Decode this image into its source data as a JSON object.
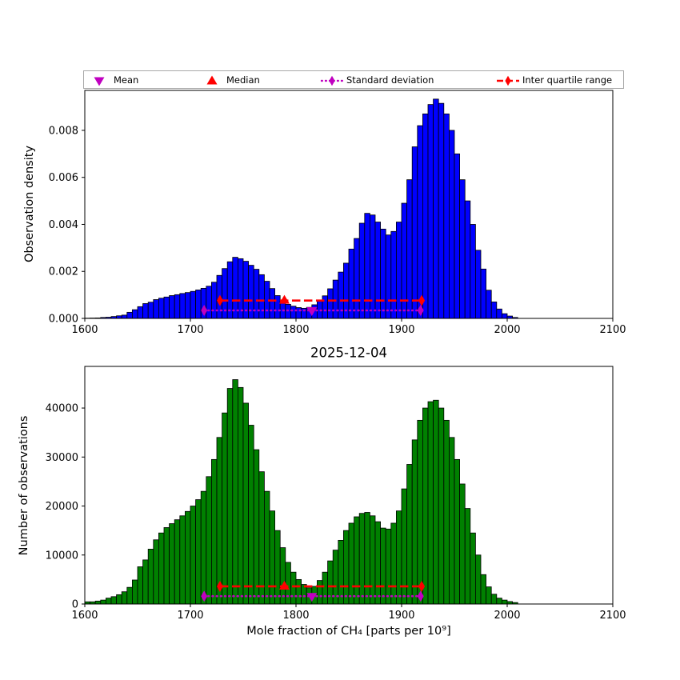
{
  "figure": {
    "title": "2025-12-04",
    "background": "#ffffff"
  },
  "colors": {
    "bar_top": "#0000FF",
    "bar_bottom": "#008000",
    "bar_edge": "#000000",
    "mean_std": "#C000C0",
    "median_iqr": "#FF0000",
    "axis": "#000000"
  },
  "legend": {
    "items": [
      {
        "label": "Mean",
        "marker": "triangle-down",
        "color": "#C000C0"
      },
      {
        "label": "Median",
        "marker": "triangle-up",
        "color": "#FF0000"
      },
      {
        "label": "Standard deviation",
        "marker": "diamond-dotted",
        "color": "#C000C0"
      },
      {
        "label": "Inter quartile range",
        "marker": "diamond-dashed",
        "color": "#FF0000"
      }
    ]
  },
  "chart_data": [
    {
      "type": "bar",
      "ylabel": "Observation density",
      "xlabel": "",
      "x_start": 1600,
      "bin_width": 5,
      "xlim": [
        1600,
        2100
      ],
      "ylim": [
        0,
        0.0097
      ],
      "x_ticks": [
        1600,
        1700,
        1800,
        1900,
        2000,
        2100
      ],
      "y_ticks": [
        0.0,
        0.002,
        0.004,
        0.006,
        0.008
      ],
      "y_tick_labels": [
        "0.000",
        "0.002",
        "0.004",
        "0.006",
        "0.008"
      ],
      "bar_color": "#0000FF",
      "values": [
        1e-05,
        1.5e-05,
        2e-05,
        4e-05,
        5e-05,
        8e-05,
        0.00011,
        0.00014,
        0.00026,
        0.00037,
        0.0005,
        0.00063,
        0.00069,
        0.0008,
        0.00086,
        0.00091,
        0.00097,
        0.00101,
        0.00106,
        0.0011,
        0.00115,
        0.00121,
        0.00128,
        0.00137,
        0.00154,
        0.00183,
        0.00212,
        0.00241,
        0.0026,
        0.00254,
        0.00243,
        0.00226,
        0.00209,
        0.00186,
        0.00158,
        0.00127,
        0.00097,
        0.00074,
        0.0006,
        0.00052,
        0.00046,
        0.00043,
        0.00047,
        0.00058,
        0.00076,
        0.00096,
        0.00126,
        0.00163,
        0.00197,
        0.00235,
        0.00295,
        0.0034,
        0.00405,
        0.00447,
        0.0044,
        0.0041,
        0.0038,
        0.00355,
        0.0037,
        0.0041,
        0.0049,
        0.0059,
        0.0073,
        0.0082,
        0.0087,
        0.0091,
        0.00933,
        0.00915,
        0.0087,
        0.008,
        0.007,
        0.0059,
        0.005,
        0.004,
        0.0029,
        0.0021,
        0.0012,
        0.0007,
        0.0004,
        0.0002,
        0.0001,
        4e-05
      ],
      "markers": {
        "mean": {
          "x": 1815,
          "y": 0.00034
        },
        "median": {
          "x": 1789,
          "y": 0.00076
        },
        "std_range": {
          "x1": 1713,
          "x2": 1918,
          "y": 0.00034
        },
        "iqr_range": {
          "x1": 1728,
          "x2": 1919,
          "y": 0.00076
        }
      }
    },
    {
      "type": "bar",
      "ylabel": "Number of observations",
      "xlabel": "Mole fraction of CH₄ [parts per 10⁹]",
      "x_start": 1600,
      "bin_width": 5,
      "xlim": [
        1600,
        2100
      ],
      "ylim": [
        0,
        48500
      ],
      "x_ticks": [
        1600,
        1700,
        1800,
        1900,
        2000,
        2100
      ],
      "y_ticks": [
        0,
        10000,
        20000,
        30000,
        40000
      ],
      "y_tick_labels": [
        "0",
        "10000",
        "20000",
        "30000",
        "40000"
      ],
      "bar_color": "#008000",
      "values": [
        450,
        450,
        600,
        800,
        1200,
        1500,
        1900,
        2500,
        3400,
        4900,
        7600,
        9000,
        11200,
        13100,
        14500,
        15600,
        16400,
        17200,
        18000,
        18900,
        20000,
        21300,
        23000,
        26000,
        29500,
        34000,
        39000,
        44000,
        45800,
        44200,
        41000,
        36500,
        31500,
        27000,
        23000,
        19000,
        15000,
        11500,
        8500,
        6500,
        5000,
        4000,
        3300,
        3600,
        4800,
        6500,
        8800,
        11000,
        13000,
        15000,
        16500,
        17800,
        18500,
        18700,
        18000,
        16800,
        15500,
        15300,
        16500,
        19000,
        23500,
        28500,
        33500,
        37500,
        40000,
        41300,
        41600,
        40000,
        37500,
        34000,
        29500,
        24500,
        19500,
        14500,
        10000,
        6000,
        3500,
        2000,
        1200,
        800,
        500,
        300
      ],
      "markers": {
        "mean": {
          "x": 1815,
          "y": 1600
        },
        "median": {
          "x": 1789,
          "y": 3600
        },
        "std_range": {
          "x1": 1713,
          "x2": 1918,
          "y": 1600
        },
        "iqr_range": {
          "x1": 1728,
          "x2": 1919,
          "y": 3600
        }
      }
    }
  ]
}
